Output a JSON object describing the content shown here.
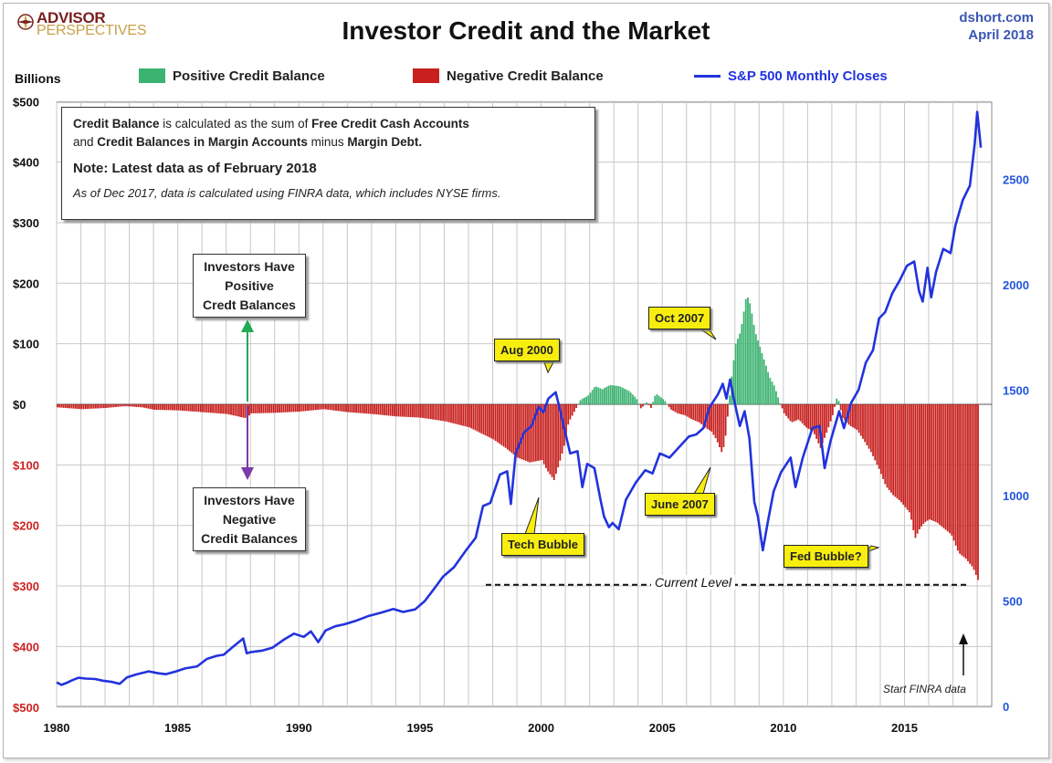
{
  "header": {
    "logo_main": "ADVISOR",
    "logo_sub": "PERSPECTIVES",
    "title": "Investor Credit and the Market",
    "source_line1": "dshort.com",
    "source_line2": "April 2018",
    "units_label": "Billions"
  },
  "legend": {
    "positive": "Positive Credit Balance",
    "negative": "Negative Credit Balance",
    "sp500": "S&P 500 Monthly Closes"
  },
  "note": {
    "line1_a": "Credit Balance",
    "line1_b": " is calculated as the sum of ",
    "line1_c": "Free Credit Cash Accounts",
    "line2_a": "and ",
    "line2_b": "Credit Balances in Margin Accounts",
    "line2_c": " minus ",
    "line2_d": "Margin Debt.",
    "line3": "Note: Latest data as of February 2018",
    "line4": "As of Dec 2017, data is calculated using FINRA data, which includes NYSE firms."
  },
  "callouts": {
    "positive_line1": "Investors Have",
    "positive_line2": "Positive",
    "positive_line3": "Credt Balances",
    "negative_line1": "Investors Have",
    "negative_line2": "Negative",
    "negative_line3": "Credit Balances"
  },
  "annotations": {
    "aug2000": "Aug 2000",
    "oct2007": "Oct 2007",
    "tech_bubble": "Tech Bubble",
    "june2007": "June 2007",
    "fed_bubble": "Fed Bubble?",
    "current_level": "Current Level",
    "start_finra": "Start FINRA data"
  },
  "colors": {
    "positive": "#3cb371",
    "negative": "#c8201e",
    "sp500": "#2233dd",
    "axis_left": "#111111",
    "axis_right": "#2255dd",
    "negative_tick": "#cc2222",
    "annotation_fill": "#f7ee0f",
    "arrow_up": "#22aa55",
    "arrow_down": "#7a3aa8"
  },
  "chart_data": {
    "type": "bar",
    "x_range": [
      1980,
      2018.6
    ],
    "xticks": [
      1980,
      1985,
      1990,
      1995,
      2000,
      2005,
      2010,
      2015
    ],
    "ylim_left": [
      -500,
      500
    ],
    "yticks_left": [
      {
        "value": 500,
        "label": "$500"
      },
      {
        "value": 400,
        "label": "$400"
      },
      {
        "value": 300,
        "label": "$300"
      },
      {
        "value": 200,
        "label": "$200"
      },
      {
        "value": 100,
        "label": "$100"
      },
      {
        "value": 0,
        "label": "$0"
      },
      {
        "value": -100,
        "label": "$100"
      },
      {
        "value": -200,
        "label": "$200"
      },
      {
        "value": -300,
        "label": "$300"
      },
      {
        "value": -400,
        "label": "$400"
      },
      {
        "value": -500,
        "label": "$500"
      }
    ],
    "ylim_right": [
      0,
      2900
    ],
    "yticks_right": [
      {
        "value": 500,
        "label": "500"
      },
      {
        "value": 1000,
        "label": "1000"
      },
      {
        "value": 1500,
        "label": "1500"
      },
      {
        "value": 2000,
        "label": "2000"
      },
      {
        "value": 2500,
        "label": "2500"
      },
      {
        "value": 0,
        "label": "0"
      }
    ],
    "grid": true,
    "current_level": -298,
    "credit_balance": [
      [
        1980.0,
        -5
      ],
      [
        1981.0,
        -8
      ],
      [
        1982.0,
        -6
      ],
      [
        1982.8,
        -3
      ],
      [
        1983.5,
        -5
      ],
      [
        1984.0,
        -9
      ],
      [
        1985.0,
        -10
      ],
      [
        1986.0,
        -13
      ],
      [
        1987.0,
        -16
      ],
      [
        1987.8,
        -23
      ],
      [
        1988.0,
        -15
      ],
      [
        1989.0,
        -14
      ],
      [
        1990.0,
        -12
      ],
      [
        1991.0,
        -8
      ],
      [
        1992.0,
        -13
      ],
      [
        1993.0,
        -16
      ],
      [
        1994.0,
        -20
      ],
      [
        1995.0,
        -22
      ],
      [
        1996.0,
        -28
      ],
      [
        1997.0,
        -38
      ],
      [
        1997.5,
        -48
      ],
      [
        1998.0,
        -58
      ],
      [
        1998.5,
        -72
      ],
      [
        1999.0,
        -88
      ],
      [
        1999.5,
        -96
      ],
      [
        2000.0,
        -92
      ],
      [
        2000.2,
        -108
      ],
      [
        2000.5,
        -125
      ],
      [
        2000.7,
        -100
      ],
      [
        2000.9,
        -72
      ],
      [
        2001.1,
        -30
      ],
      [
        2001.3,
        -15
      ],
      [
        2001.6,
        8
      ],
      [
        2001.9,
        14
      ],
      [
        2002.2,
        30
      ],
      [
        2002.5,
        25
      ],
      [
        2002.8,
        32
      ],
      [
        2003.2,
        30
      ],
      [
        2003.6,
        22
      ],
      [
        2003.9,
        10
      ],
      [
        2004.1,
        -8
      ],
      [
        2004.3,
        5
      ],
      [
        2004.5,
        -6
      ],
      [
        2004.7,
        18
      ],
      [
        2004.9,
        12
      ],
      [
        2005.1,
        5
      ],
      [
        2005.3,
        -8
      ],
      [
        2005.6,
        -15
      ],
      [
        2005.9,
        -18
      ],
      [
        2006.2,
        -25
      ],
      [
        2006.5,
        -30
      ],
      [
        2006.8,
        -40
      ],
      [
        2007.0,
        -45
      ],
      [
        2007.2,
        -58
      ],
      [
        2007.45,
        -82
      ],
      [
        2007.6,
        -48
      ],
      [
        2007.8,
        35
      ],
      [
        2008.0,
        100
      ],
      [
        2008.2,
        120
      ],
      [
        2008.45,
        182
      ],
      [
        2008.6,
        165
      ],
      [
        2008.8,
        120
      ],
      [
        2009.0,
        95
      ],
      [
        2009.2,
        70
      ],
      [
        2009.4,
        45
      ],
      [
        2009.6,
        30
      ],
      [
        2009.8,
        5
      ],
      [
        2010.0,
        -15
      ],
      [
        2010.3,
        -30
      ],
      [
        2010.6,
        -25
      ],
      [
        2010.9,
        -38
      ],
      [
        2011.2,
        -45
      ],
      [
        2011.5,
        -72
      ],
      [
        2011.8,
        -42
      ],
      [
        2012.0,
        -18
      ],
      [
        2012.2,
        15
      ],
      [
        2012.4,
        -22
      ],
      [
        2012.7,
        -35
      ],
      [
        2013.0,
        -42
      ],
      [
        2013.3,
        -60
      ],
      [
        2013.6,
        -80
      ],
      [
        2013.9,
        -105
      ],
      [
        2014.2,
        -135
      ],
      [
        2014.5,
        -150
      ],
      [
        2014.8,
        -160
      ],
      [
        2015.0,
        -170
      ],
      [
        2015.2,
        -180
      ],
      [
        2015.4,
        -222
      ],
      [
        2015.6,
        -205
      ],
      [
        2015.8,
        -195
      ],
      [
        2016.0,
        -190
      ],
      [
        2016.3,
        -195
      ],
      [
        2016.6,
        -205
      ],
      [
        2016.9,
        -215
      ],
      [
        2017.2,
        -245
      ],
      [
        2017.5,
        -255
      ],
      [
        2017.8,
        -270
      ],
      [
        2018.0,
        -290
      ],
      [
        2018.08,
        -315
      ]
    ],
    "sp500": [
      [
        1980.0,
        114
      ],
      [
        1980.2,
        102
      ],
      [
        1980.4,
        111
      ],
      [
        1980.6,
        122
      ],
      [
        1980.9,
        136
      ],
      [
        1981.2,
        132
      ],
      [
        1981.6,
        130
      ],
      [
        1981.9,
        122
      ],
      [
        1982.3,
        116
      ],
      [
        1982.6,
        107
      ],
      [
        1982.9,
        137
      ],
      [
        1983.3,
        152
      ],
      [
        1983.8,
        166
      ],
      [
        1984.2,
        157
      ],
      [
        1984.5,
        153
      ],
      [
        1984.9,
        165
      ],
      [
        1985.3,
        180
      ],
      [
        1985.8,
        190
      ],
      [
        1986.2,
        225
      ],
      [
        1986.6,
        240
      ],
      [
        1986.9,
        245
      ],
      [
        1987.3,
        285
      ],
      [
        1987.7,
        322
      ],
      [
        1987.85,
        252
      ],
      [
        1988.0,
        257
      ],
      [
        1988.5,
        265
      ],
      [
        1988.9,
        278
      ],
      [
        1989.4,
        318
      ],
      [
        1989.8,
        345
      ],
      [
        1990.2,
        330
      ],
      [
        1990.5,
        356
      ],
      [
        1990.8,
        305
      ],
      [
        1991.1,
        360
      ],
      [
        1991.5,
        380
      ],
      [
        1991.9,
        390
      ],
      [
        1992.4,
        408
      ],
      [
        1992.9,
        430
      ],
      [
        1993.4,
        445
      ],
      [
        1993.9,
        462
      ],
      [
        1994.3,
        448
      ],
      [
        1994.8,
        460
      ],
      [
        1995.2,
        500
      ],
      [
        1995.6,
        560
      ],
      [
        1995.95,
        615
      ],
      [
        1996.4,
        660
      ],
      [
        1996.9,
        740
      ],
      [
        1997.3,
        800
      ],
      [
        1997.6,
        950
      ],
      [
        1997.9,
        965
      ],
      [
        1998.3,
        1100
      ],
      [
        1998.6,
        1115
      ],
      [
        1998.75,
        960
      ],
      [
        1998.95,
        1200
      ],
      [
        1999.3,
        1300
      ],
      [
        1999.6,
        1330
      ],
      [
        1999.9,
        1420
      ],
      [
        2000.1,
        1395
      ],
      [
        2000.3,
        1460
      ],
      [
        2000.6,
        1490
      ],
      [
        2000.75,
        1420
      ],
      [
        2000.95,
        1320
      ],
      [
        2001.2,
        1200
      ],
      [
        2001.5,
        1210
      ],
      [
        2001.7,
        1040
      ],
      [
        2001.9,
        1150
      ],
      [
        2002.2,
        1130
      ],
      [
        2002.45,
        980
      ],
      [
        2002.6,
        900
      ],
      [
        2002.8,
        850
      ],
      [
        2002.95,
        870
      ],
      [
        2003.2,
        840
      ],
      [
        2003.5,
        980
      ],
      [
        2003.9,
        1060
      ],
      [
        2004.3,
        1120
      ],
      [
        2004.6,
        1105
      ],
      [
        2004.9,
        1200
      ],
      [
        2005.3,
        1180
      ],
      [
        2005.7,
        1230
      ],
      [
        2006.1,
        1280
      ],
      [
        2006.4,
        1290
      ],
      [
        2006.7,
        1320
      ],
      [
        2006.95,
        1418
      ],
      [
        2007.3,
        1480
      ],
      [
        2007.5,
        1530
      ],
      [
        2007.65,
        1460
      ],
      [
        2007.8,
        1550
      ],
      [
        2007.95,
        1460
      ],
      [
        2008.2,
        1330
      ],
      [
        2008.4,
        1400
      ],
      [
        2008.6,
        1270
      ],
      [
        2008.8,
        970
      ],
      [
        2008.95,
        900
      ],
      [
        2009.15,
        740
      ],
      [
        2009.35,
        870
      ],
      [
        2009.6,
        1020
      ],
      [
        2009.9,
        1110
      ],
      [
        2010.3,
        1180
      ],
      [
        2010.5,
        1040
      ],
      [
        2010.8,
        1180
      ],
      [
        2011.2,
        1320
      ],
      [
        2011.5,
        1330
      ],
      [
        2011.7,
        1130
      ],
      [
        2011.95,
        1260
      ],
      [
        2012.3,
        1400
      ],
      [
        2012.5,
        1320
      ],
      [
        2012.8,
        1440
      ],
      [
        2013.1,
        1500
      ],
      [
        2013.4,
        1630
      ],
      [
        2013.7,
        1690
      ],
      [
        2013.95,
        1840
      ],
      [
        2014.2,
        1870
      ],
      [
        2014.5,
        1960
      ],
      [
        2014.8,
        2020
      ],
      [
        2015.1,
        2090
      ],
      [
        2015.4,
        2110
      ],
      [
        2015.6,
        1970
      ],
      [
        2015.75,
        1920
      ],
      [
        2015.95,
        2080
      ],
      [
        2016.1,
        1940
      ],
      [
        2016.3,
        2060
      ],
      [
        2016.6,
        2170
      ],
      [
        2016.9,
        2150
      ],
      [
        2017.1,
        2280
      ],
      [
        2017.4,
        2400
      ],
      [
        2017.7,
        2470
      ],
      [
        2017.9,
        2670
      ],
      [
        2018.0,
        2820
      ],
      [
        2018.1,
        2710
      ],
      [
        2018.15,
        2650
      ]
    ]
  }
}
